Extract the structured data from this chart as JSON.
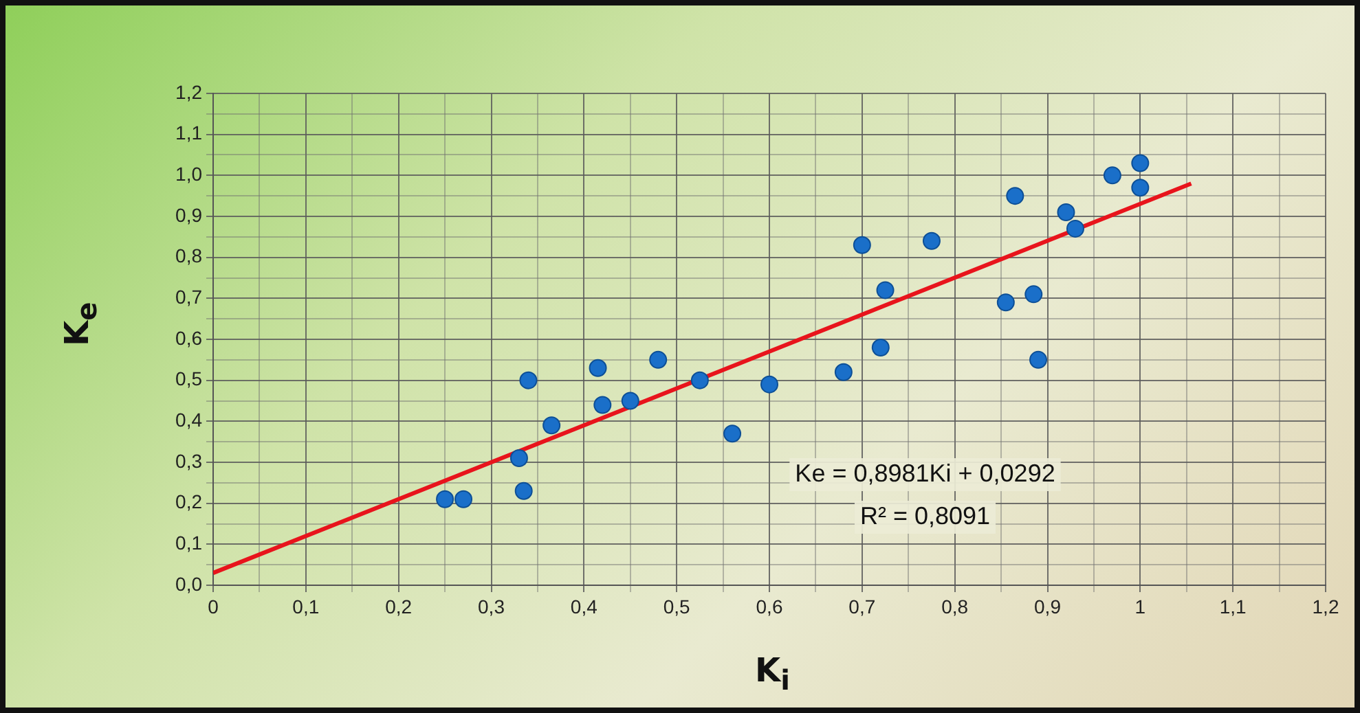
{
  "chart_data": {
    "type": "scatter",
    "xlabel": "K$_{i}$",
    "ylabel": "K$_{e}$",
    "annotations": [
      "Ke = 0,8981Ki + 0,0292",
      "R² = 0,8091"
    ],
    "series": [
      {
        "type": "scatter",
        "marker": "circle",
        "color": "#1a6fc9",
        "x": [
          0.25,
          0.27,
          0.33,
          0.335,
          0.34,
          0.365,
          0.415,
          0.42,
          0.45,
          0.48,
          0.525,
          0.56,
          0.6,
          0.68,
          0.7,
          0.72,
          0.725,
          0.775,
          0.855,
          0.865,
          0.885,
          0.89,
          0.92,
          0.93,
          0.97,
          1.0,
          1.0
        ],
        "values": [
          0.21,
          0.21,
          0.31,
          0.23,
          0.5,
          0.39,
          0.53,
          0.44,
          0.45,
          0.55,
          0.5,
          0.37,
          0.49,
          0.52,
          0.83,
          0.58,
          0.72,
          0.84,
          0.69,
          0.95,
          0.71,
          0.55,
          0.91,
          0.87,
          1.0,
          1.03,
          0.97
        ]
      },
      {
        "type": "line",
        "color": "#e8141c",
        "x": [
          0,
          1.055
        ],
        "values": [
          0.03,
          0.98
        ]
      }
    ],
    "xlim": [
      0,
      1.2
    ],
    "ylim": [
      0,
      1.2
    ],
    "xticks": [
      0,
      {
        "value": 0.05,
        "label": null
      },
      {
        "value": 0.1,
        "label": "0,1"
      },
      {
        "value": 0.15,
        "label": null
      },
      {
        "value": 0.2,
        "label": "0,2"
      },
      {
        "value": 0.25,
        "label": null
      },
      {
        "value": 0.3,
        "label": "0,3"
      },
      {
        "value": 0.35,
        "label": null
      },
      {
        "value": 0.4,
        "label": "0,4"
      },
      {
        "value": 0.45,
        "label": null
      },
      {
        "value": 0.5,
        "label": "0,5"
      },
      {
        "value": 0.55,
        "label": null
      },
      {
        "value": 0.6,
        "label": "0,6"
      },
      {
        "value": 0.65,
        "label": null
      },
      {
        "value": 0.7,
        "label": "0,7"
      },
      {
        "value": 0.75,
        "label": null
      },
      {
        "value": 0.8,
        "label": "0,8"
      },
      {
        "value": 0.85,
        "label": null
      },
      {
        "value": 0.9,
        "label": "0,9"
      },
      {
        "value": 0.95,
        "label": null
      },
      1,
      {
        "value": 1.05,
        "label": null
      },
      {
        "value": 1.1,
        "label": "1,1"
      },
      {
        "value": 1.15,
        "label": null
      },
      {
        "value": 1.2,
        "label": "1,2"
      }
    ],
    "yticks": [
      {
        "value": 0,
        "label": "0,0"
      },
      {
        "value": 0.05,
        "label": null
      },
      {
        "value": 0.1,
        "label": "0,1"
      },
      {
        "value": 0.15,
        "label": null
      },
      {
        "value": 0.2,
        "label": "0,2"
      },
      {
        "value": 0.25,
        "label": null
      },
      {
        "value": 0.3,
        "label": "0,3"
      },
      {
        "value": 0.35,
        "label": null
      },
      {
        "value": 0.4,
        "label": "0,4"
      },
      {
        "value": 0.45,
        "label": null
      },
      {
        "value": 0.5,
        "label": "0,5"
      },
      {
        "value": 0.55,
        "label": null
      },
      {
        "value": 0.6,
        "label": "0,6"
      },
      {
        "value": 0.65,
        "label": null
      },
      {
        "value": 0.7,
        "label": "0,7"
      },
      {
        "value": 0.75,
        "label": null
      },
      {
        "value": 0.8,
        "label": "0,8"
      },
      {
        "value": 0.85,
        "label": null
      },
      {
        "value": 0.9,
        "label": "0,9"
      },
      {
        "value": 0.95,
        "label": null
      },
      {
        "value": 1,
        "label": "1,0"
      },
      {
        "value": 1.05,
        "label": null
      },
      {
        "value": 1.1,
        "label": "1,1"
      },
      {
        "value": 1.15,
        "label": null
      },
      {
        "value": 1.2,
        "label": "1,2"
      }
    ],
    "grid": true,
    "legend": false
  }
}
